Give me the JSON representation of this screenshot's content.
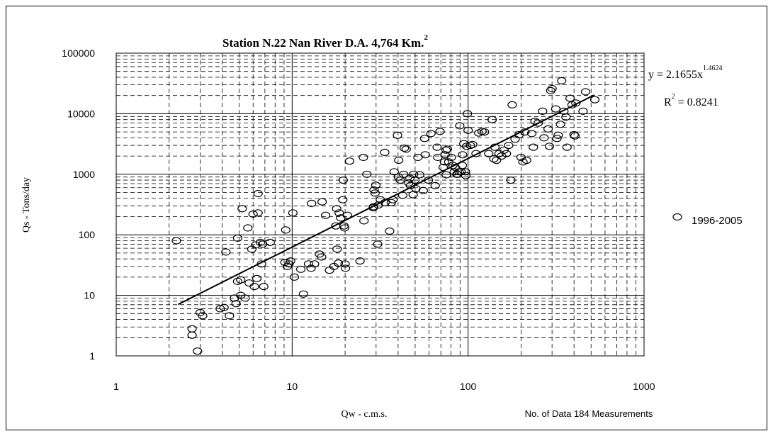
{
  "chart_data": {
    "type": "scatter",
    "title_main": "Station N.22 Nan River D.A. 4,764 Km.",
    "title_sup": "2",
    "xlabel": "Qw - c.m.s.",
    "ylabel": "Qs - Tons/day",
    "x_scale": "log",
    "y_scale": "log",
    "xlim": [
      1,
      1000
    ],
    "ylim": [
      1,
      100000
    ],
    "x_ticks": [
      "1",
      "10",
      "100",
      "1000"
    ],
    "y_ticks": [
      "100000",
      "10000",
      "1000",
      "100",
      "10",
      "1"
    ],
    "grid": true,
    "legend": {
      "placement": "right",
      "label": "1996-2005"
    },
    "trendline": {
      "equation_main": "y = 2.1655x",
      "equation_exp": "1.4624",
      "r2_main": "R",
      "r2_sup": "2",
      "r2_value": " = 0.8241",
      "coefficient": 2.1655,
      "exponent": 1.4624,
      "x_range": [
        2.25,
        520
      ]
    },
    "note": "No. of Data 184 Measurements",
    "series": [
      {
        "name": "1996-2005",
        "marker": "open-circle",
        "points": [
          [
            2.2,
            80
          ],
          [
            2.7,
            2.8
          ],
          [
            2.7,
            2.2
          ],
          [
            2.9,
            1.2
          ],
          [
            3.0,
            5.2
          ],
          [
            3.1,
            4.6
          ],
          [
            3.9,
            6.0
          ],
          [
            4.1,
            6.3
          ],
          [
            4.2,
            52
          ],
          [
            4.4,
            4.6
          ],
          [
            4.7,
            9
          ],
          [
            4.8,
            7.3
          ],
          [
            4.9,
            88
          ],
          [
            4.9,
            17
          ],
          [
            5.1,
            10
          ],
          [
            5.1,
            18
          ],
          [
            5.2,
            270
          ],
          [
            5.4,
            9
          ],
          [
            5.6,
            130
          ],
          [
            5.7,
            16
          ],
          [
            5.9,
            58
          ],
          [
            6.0,
            220
          ],
          [
            6.1,
            14
          ],
          [
            6.2,
            68
          ],
          [
            6.3,
            19
          ],
          [
            6.4,
            230
          ],
          [
            6.4,
            480
          ],
          [
            6.6,
            75
          ],
          [
            6.7,
            33
          ],
          [
            6.8,
            70
          ],
          [
            6.9,
            14
          ],
          [
            7.5,
            75
          ],
          [
            9.1,
            35
          ],
          [
            9.2,
            120
          ],
          [
            9.4,
            30
          ],
          [
            9.6,
            33
          ],
          [
            9.8,
            37
          ],
          [
            10.1,
            230
          ],
          [
            10.3,
            20
          ],
          [
            11.2,
            27
          ],
          [
            11.6,
            10.5
          ],
          [
            12.4,
            33
          ],
          [
            12.8,
            28
          ],
          [
            12.9,
            330
          ],
          [
            13.4,
            33
          ],
          [
            14.3,
            48
          ],
          [
            14.7,
            43
          ],
          [
            14.8,
            350
          ],
          [
            15.5,
            210
          ],
          [
            16.3,
            26
          ],
          [
            17.3,
            30
          ],
          [
            17.7,
            140
          ],
          [
            17.9,
            270
          ],
          [
            18.0,
            58
          ],
          [
            18.3,
            34
          ],
          [
            18.5,
            230
          ],
          [
            18.9,
            190
          ],
          [
            19.4,
            380
          ],
          [
            19.5,
            800
          ],
          [
            19.7,
            140
          ],
          [
            19.9,
            130
          ],
          [
            20.0,
            33
          ],
          [
            20.1,
            28
          ],
          [
            20.6,
            210
          ],
          [
            21.2,
            1650
          ],
          [
            24.3,
            37
          ],
          [
            25.4,
            1900
          ],
          [
            25.6,
            170
          ],
          [
            26.6,
            1000
          ],
          [
            28.9,
            280
          ],
          [
            29.0,
            290
          ],
          [
            29.2,
            550
          ],
          [
            29.6,
            490
          ],
          [
            29.9,
            660
          ],
          [
            30.6,
            70
          ],
          [
            30.9,
            310
          ],
          [
            31.7,
            380
          ],
          [
            33.6,
            2300
          ],
          [
            33.7,
            340
          ],
          [
            35.8,
            115
          ],
          [
            36.6,
            340
          ],
          [
            37.4,
            380
          ],
          [
            38.0,
            1100
          ],
          [
            39.7,
            4400
          ],
          [
            40.2,
            900
          ],
          [
            40.3,
            1700
          ],
          [
            41.2,
            800
          ],
          [
            42.5,
            450
          ],
          [
            43.0,
            1000
          ],
          [
            43.4,
            2700
          ],
          [
            44.5,
            2600
          ],
          [
            46.0,
            720
          ],
          [
            46.7,
            860
          ],
          [
            47.0,
            650
          ],
          [
            48.7,
            460
          ],
          [
            49.0,
            1000
          ],
          [
            49.8,
            800
          ],
          [
            50.5,
            580
          ],
          [
            51.9,
            1900
          ],
          [
            53.0,
            980
          ],
          [
            55.6,
            540
          ],
          [
            56.6,
            3900
          ],
          [
            57.1,
            2100
          ],
          [
            59.5,
            800
          ],
          [
            61.5,
            4700
          ],
          [
            65.0,
            650
          ],
          [
            66.7,
            2800
          ],
          [
            67.2,
            1900
          ],
          [
            69.2,
            5100
          ],
          [
            72.2,
            1300
          ],
          [
            73.3,
            1600
          ],
          [
            74.1,
            2100
          ],
          [
            75.0,
            2500
          ],
          [
            75.2,
            980
          ],
          [
            76.2,
            2600
          ],
          [
            77.6,
            1600
          ],
          [
            80.3,
            1900
          ],
          [
            81.9,
            1400
          ],
          [
            83.6,
            1100
          ],
          [
            84.5,
            1300
          ],
          [
            86.3,
            1000
          ],
          [
            87.1,
            1000
          ],
          [
            88.9,
            1100
          ],
          [
            89.7,
            6300
          ],
          [
            91.2,
            1100
          ],
          [
            92.7,
            1400
          ],
          [
            93.0,
            2100
          ],
          [
            94.6,
            3200
          ],
          [
            96.7,
            1100
          ],
          [
            97.0,
            950
          ],
          [
            98.0,
            2900
          ],
          [
            99.1,
            10000
          ],
          [
            100,
            5300
          ],
          [
            103,
            3000
          ],
          [
            106,
            3100
          ],
          [
            111,
            2200
          ],
          [
            115,
            4800
          ],
          [
            120,
            5100
          ],
          [
            124,
            5000
          ],
          [
            131,
            2200
          ],
          [
            137,
            8000
          ],
          [
            140,
            1800
          ],
          [
            142,
            2800
          ],
          [
            145,
            1700
          ],
          [
            150,
            2200
          ],
          [
            155,
            2000
          ],
          [
            160,
            2500
          ],
          [
            165,
            2200
          ],
          [
            170,
            3000
          ],
          [
            175,
            800
          ],
          [
            178,
            14000
          ],
          [
            185,
            3800
          ],
          [
            195,
            4500
          ],
          [
            200,
            1900
          ],
          [
            205,
            1600
          ],
          [
            210,
            5000
          ],
          [
            215,
            1700
          ],
          [
            230,
            4700
          ],
          [
            235,
            2800
          ],
          [
            240,
            7500
          ],
          [
            250,
            7000
          ],
          [
            265,
            11000
          ],
          [
            270,
            4000
          ],
          [
            285,
            5600
          ],
          [
            290,
            2900
          ],
          [
            295,
            24000
          ],
          [
            300,
            26000
          ],
          [
            315,
            12000
          ],
          [
            320,
            3900
          ],
          [
            325,
            4400
          ],
          [
            335,
            6700
          ],
          [
            340,
            35000
          ],
          [
            350,
            11000
          ],
          [
            360,
            8800
          ],
          [
            365,
            2800
          ],
          [
            380,
            18000
          ],
          [
            390,
            14000
          ],
          [
            400,
            4500
          ],
          [
            405,
            4300
          ],
          [
            410,
            15000
          ],
          [
            450,
            11000
          ],
          [
            465,
            23000
          ],
          [
            525,
            17000
          ]
        ]
      }
    ]
  }
}
